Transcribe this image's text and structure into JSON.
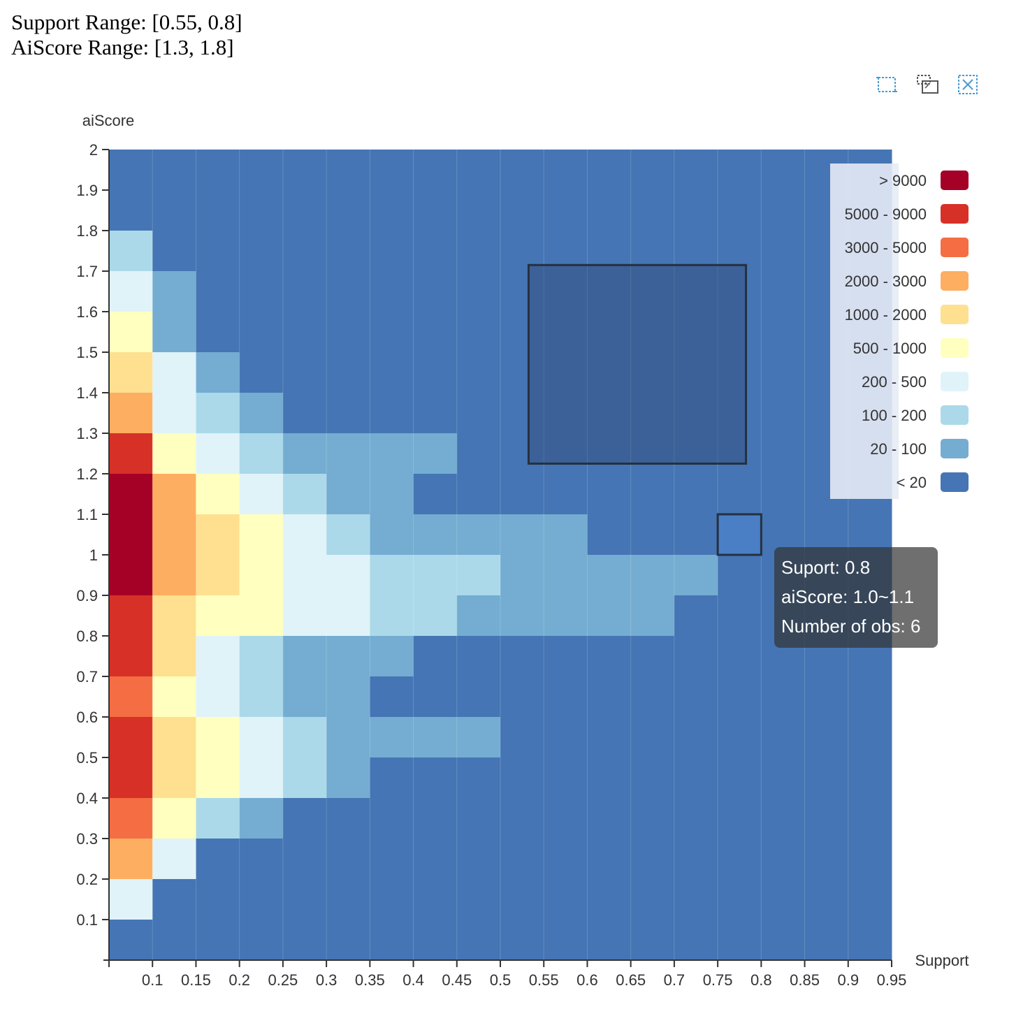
{
  "header": {
    "support_range": "Support Range: [0.55, 0.8]",
    "aiscore_range": "AiScore Range: [1.3, 1.8]"
  },
  "toolbox": {
    "items": [
      "data-zoom-icon",
      "zoom-reset-icon",
      "clear-selection-icon"
    ],
    "color": "#4a9bd1"
  },
  "tooltip": {
    "line1": "Suport: 0.8",
    "line2": "aiScore: 1.0~1.1",
    "line3": "Number of obs: 6"
  },
  "chart_data": {
    "type": "heatmap",
    "xlabel": "Support",
    "ylabel": "aiScore",
    "x_ticks": [
      "0.1",
      "0.15",
      "0.2",
      "0.25",
      "0.3",
      "0.35",
      "0.4",
      "0.45",
      "0.5",
      "0.55",
      "0.6",
      "0.65",
      "0.7",
      "0.75",
      "0.8",
      "0.85",
      "0.9",
      "0.95"
    ],
    "y_ticks": [
      "2",
      "1.9",
      "1.8",
      "1.7",
      "1.6",
      "1.5",
      "1.4",
      "1.3",
      "1.2",
      "1.1",
      "1",
      "0.9",
      "0.8",
      "0.7",
      "0.6",
      "0.5",
      "0.4",
      "0.3",
      "0.2",
      "0.1"
    ],
    "xlim": [
      0.05,
      0.95
    ],
    "ylim": [
      0,
      2
    ],
    "x_bin_width": 0.05,
    "y_bin_width": 0.1,
    "legend": {
      "position": "top-right",
      "labels": [
        "> 9000",
        "5000 - 9000",
        "3000 - 5000",
        "2000 - 3000",
        "1000 - 2000",
        "500 - 1000",
        "200 - 500",
        "100 - 200",
        "20 - 100",
        "< 20"
      ],
      "colors": [
        "#a50026",
        "#d73027",
        "#f46d43",
        "#fdae61",
        "#fee090",
        "#ffffbf",
        "#e0f3f8",
        "#abd9e9",
        "#74add1",
        "#4575b4"
      ]
    },
    "rows_note": "grid rows from aiScore 1.9-2.0 (top) down to 0.0-0.1 (bottom); columns Support bins starting at 0.05; values are legend class indices (0 = > 9000 ... 9 = < 20)",
    "grid": [
      [
        9,
        9,
        9,
        9,
        9,
        9,
        9,
        9,
        9,
        9,
        9,
        9,
        9,
        9,
        9,
        9,
        9,
        9
      ],
      [
        9,
        9,
        9,
        9,
        9,
        9,
        9,
        9,
        9,
        9,
        9,
        9,
        9,
        9,
        9,
        9,
        9,
        9
      ],
      [
        7,
        9,
        9,
        9,
        9,
        9,
        9,
        9,
        9,
        9,
        9,
        9,
        9,
        9,
        9,
        9,
        9,
        9
      ],
      [
        6,
        8,
        9,
        9,
        9,
        9,
        9,
        9,
        9,
        9,
        9,
        9,
        9,
        9,
        9,
        9,
        9,
        9
      ],
      [
        5,
        8,
        9,
        9,
        9,
        9,
        9,
        9,
        9,
        9,
        9,
        9,
        9,
        9,
        9,
        9,
        9,
        9
      ],
      [
        4,
        6,
        8,
        9,
        9,
        9,
        9,
        9,
        9,
        9,
        9,
        9,
        9,
        9,
        9,
        9,
        9,
        9
      ],
      [
        3,
        6,
        7,
        8,
        9,
        9,
        9,
        9,
        9,
        9,
        9,
        9,
        9,
        9,
        9,
        9,
        9,
        9
      ],
      [
        1,
        5,
        6,
        7,
        8,
        8,
        8,
        8,
        9,
        9,
        9,
        9,
        9,
        9,
        9,
        9,
        9,
        9
      ],
      [
        0,
        3,
        5,
        6,
        7,
        8,
        8,
        9,
        9,
        9,
        9,
        9,
        9,
        9,
        9,
        9,
        9,
        9
      ],
      [
        0,
        3,
        4,
        5,
        6,
        7,
        8,
        8,
        8,
        8,
        8,
        9,
        9,
        9,
        9,
        9,
        9,
        9
      ],
      [
        0,
        3,
        4,
        5,
        6,
        6,
        7,
        7,
        7,
        8,
        8,
        8,
        8,
        8,
        9,
        9,
        9,
        9
      ],
      [
        1,
        4,
        5,
        5,
        6,
        6,
        7,
        7,
        8,
        8,
        8,
        8,
        8,
        9,
        9,
        9,
        9,
        9
      ],
      [
        1,
        4,
        6,
        7,
        8,
        8,
        8,
        9,
        9,
        9,
        9,
        9,
        9,
        9,
        9,
        9,
        9,
        9
      ],
      [
        2,
        5,
        6,
        7,
        8,
        8,
        9,
        9,
        9,
        9,
        9,
        9,
        9,
        9,
        9,
        9,
        9,
        9
      ],
      [
        1,
        4,
        5,
        6,
        7,
        8,
        8,
        8,
        8,
        9,
        9,
        9,
        9,
        9,
        9,
        9,
        9,
        9
      ],
      [
        1,
        4,
        5,
        6,
        7,
        8,
        9,
        9,
        9,
        9,
        9,
        9,
        9,
        9,
        9,
        9,
        9,
        9
      ],
      [
        2,
        5,
        7,
        8,
        9,
        9,
        9,
        9,
        9,
        9,
        9,
        9,
        9,
        9,
        9,
        9,
        9,
        9
      ],
      [
        3,
        6,
        9,
        9,
        9,
        9,
        9,
        9,
        9,
        9,
        9,
        9,
        9,
        9,
        9,
        9,
        9,
        9
      ],
      [
        6,
        9,
        9,
        9,
        9,
        9,
        9,
        9,
        9,
        9,
        9,
        9,
        9,
        9,
        9,
        9,
        9,
        9
      ],
      [
        9,
        9,
        9,
        9,
        9,
        9,
        9,
        9,
        9,
        9,
        9,
        9,
        9,
        9,
        9,
        9,
        9,
        9
      ]
    ],
    "selection": {
      "support": [
        0.55,
        0.8
      ],
      "aiScore": [
        1.3,
        1.8
      ]
    },
    "hovered_cell": {
      "support": [
        0.75,
        0.8
      ],
      "aiScore": [
        1.0,
        1.1
      ],
      "count": 6
    }
  }
}
